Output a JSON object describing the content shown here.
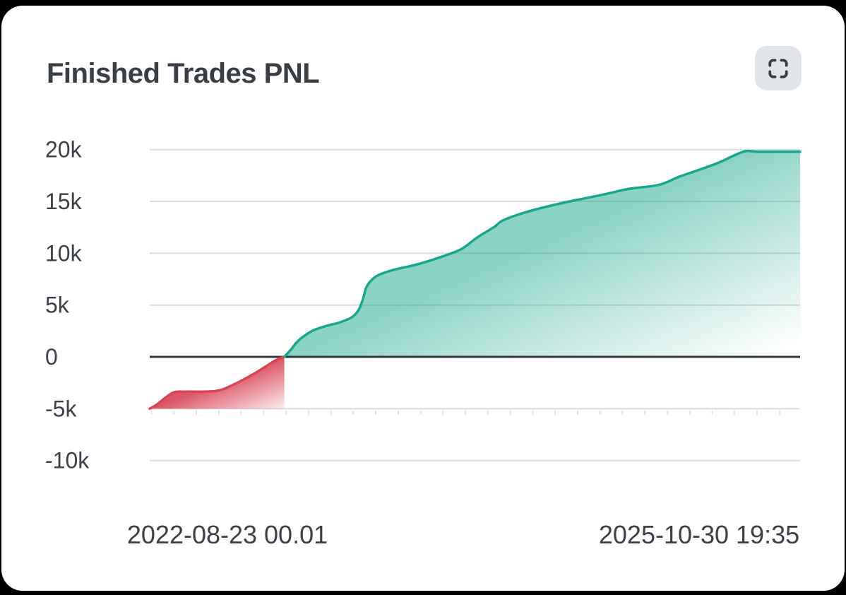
{
  "page": {
    "title": "Finished Trades PNL"
  },
  "header": {
    "expand_button": {
      "icon": "fullscreen-corners-icon",
      "label": ""
    }
  },
  "colors": {
    "page_background": "#000000",
    "card_background": "#ffffff",
    "text": "#3c4147",
    "positive": "#18a78b",
    "negative": "#d94455",
    "grid": "#d8dbdf",
    "zero_line": "#34383d",
    "axis_tick": "#e2e4e8",
    "button_background": "#e2e5e9",
    "button_icon": "#383d43"
  },
  "chart_data": {
    "type": "area",
    "title": "Finished Trades PNL",
    "legend": "none",
    "grid": "horizontal-only",
    "x_axis": {
      "labels": [
        "2022-08-23 00.01",
        "2025-10-30 19:35"
      ],
      "description": "time range from first to last finished trade"
    },
    "y_axis": {
      "range": [
        -10000,
        20000
      ],
      "ticks": [
        {
          "value": 20000,
          "label": "20k"
        },
        {
          "value": 15000,
          "label": "15k"
        },
        {
          "value": 10000,
          "label": "10k"
        },
        {
          "value": 5000,
          "label": "5k"
        },
        {
          "value": 0,
          "label": "0"
        },
        {
          "value": -5000,
          "label": "-5k"
        },
        {
          "value": -10000,
          "label": "-10k"
        }
      ]
    },
    "zero_baseline": true,
    "series": [
      {
        "name": "pnl-loss-segment",
        "color": "#d94455",
        "area_baseline": -5000,
        "points": [
          [
            0.0,
            -5000
          ],
          [
            0.011,
            -4600
          ],
          [
            0.025,
            -3900
          ],
          [
            0.038,
            -3400
          ],
          [
            0.055,
            -3350
          ],
          [
            0.101,
            -3300
          ],
          [
            0.128,
            -2700
          ],
          [
            0.161,
            -1600
          ],
          [
            0.193,
            -350
          ],
          [
            0.207,
            0
          ]
        ]
      },
      {
        "name": "pnl-profit-segment",
        "color": "#18a78b",
        "area_baseline": 0,
        "points": [
          [
            0.207,
            0
          ],
          [
            0.217,
            700
          ],
          [
            0.226,
            1400
          ],
          [
            0.237,
            2000
          ],
          [
            0.253,
            2600
          ],
          [
            0.275,
            3050
          ],
          [
            0.291,
            3300
          ],
          [
            0.31,
            3800
          ],
          [
            0.321,
            4500
          ],
          [
            0.328,
            5600
          ],
          [
            0.333,
            6700
          ],
          [
            0.341,
            7400
          ],
          [
            0.352,
            7900
          ],
          [
            0.375,
            8400
          ],
          [
            0.41,
            8900
          ],
          [
            0.446,
            9600
          ],
          [
            0.479,
            10400
          ],
          [
            0.503,
            11500
          ],
          [
            0.53,
            12550
          ],
          [
            0.541,
            13100
          ],
          [
            0.565,
            13700
          ],
          [
            0.595,
            14250
          ],
          [
            0.638,
            14900
          ],
          [
            0.693,
            15600
          ],
          [
            0.736,
            16200
          ],
          [
            0.783,
            16600
          ],
          [
            0.815,
            17400
          ],
          [
            0.856,
            18300
          ],
          [
            0.877,
            18800
          ],
          [
            0.913,
            19800
          ],
          [
            0.935,
            19800
          ],
          [
            1.0,
            19800
          ]
        ]
      }
    ]
  }
}
